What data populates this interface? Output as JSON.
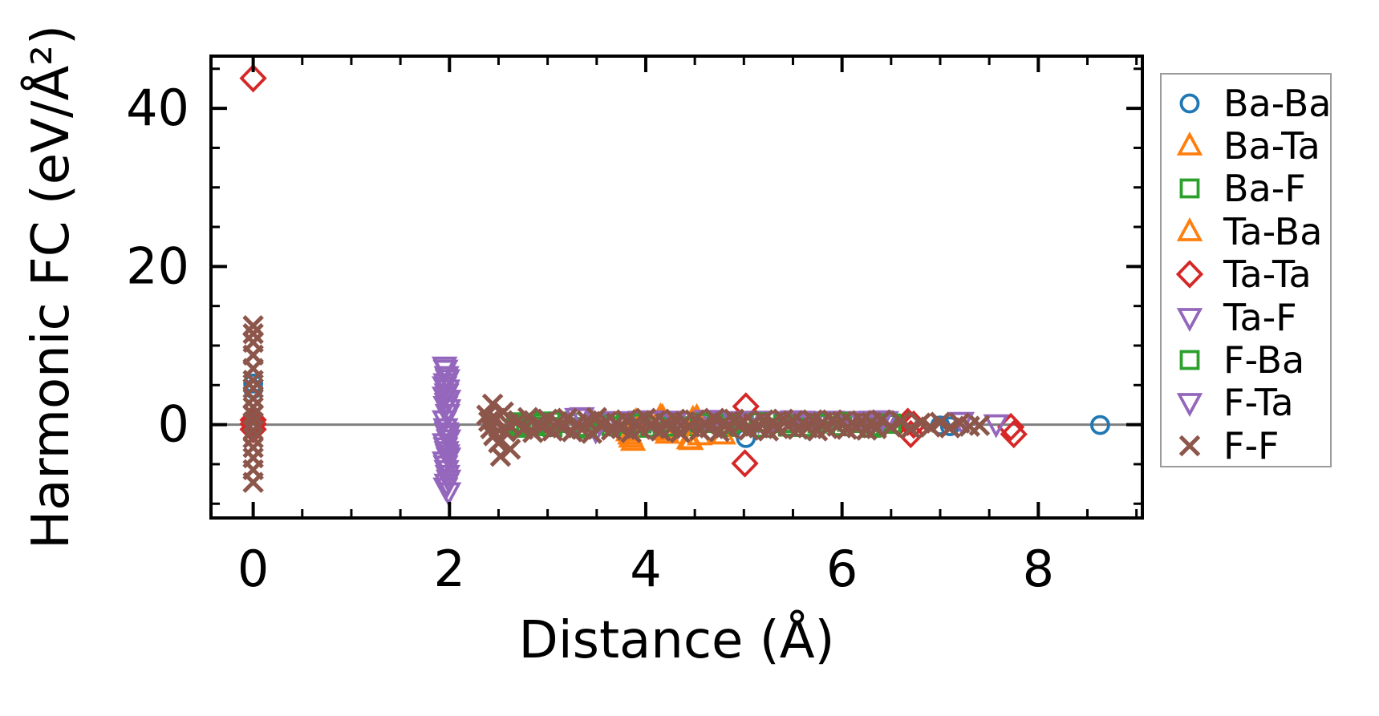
{
  "figure": {
    "xlabel": "Distance (Å)",
    "ylabel": "Harmonic FC (eV/Å²)",
    "background_color": "#ffffff",
    "spine_color": "#000000",
    "zero_line_color": "#7f7f7f",
    "legend_border_color": "#9b9b9b"
  },
  "chart_data": {
    "type": "scatter",
    "title": "",
    "xlabel": "Distance (Å)",
    "ylabel": "Harmonic FC (eV/Å²)",
    "xlim": [
      -0.43,
      9.06
    ],
    "ylim": [
      -11.8,
      46.6
    ],
    "x_major_ticks": [
      0,
      2,
      4,
      6,
      8
    ],
    "x_tick_labels": [
      "0",
      "2",
      "4",
      "6",
      "8"
    ],
    "x_minor_step": 0.5,
    "y_major_ticks": [
      0,
      20,
      40
    ],
    "y_tick_labels": [
      "0",
      "20",
      "40"
    ],
    "y_minor_step": 5,
    "grid": false,
    "tick_direction": "in",
    "ticks_all_sides": true,
    "zero_line": {
      "y": 0,
      "color": "#7f7f7f"
    },
    "legend_position": "outside-right",
    "series": [
      {
        "name": "Ba-Ba",
        "marker": "circle",
        "color": "#1f77b4",
        "points": [
          [
            0,
            5.2
          ],
          [
            0,
            4.5
          ],
          [
            0,
            0.2
          ],
          [
            5.02,
            -1.7
          ],
          [
            7.0,
            -0.1
          ],
          [
            7.1,
            -0.2
          ],
          [
            8.63,
            -0.05
          ]
        ]
      },
      {
        "name": "Ba-Ta",
        "marker": "triangle-up",
        "color": "#ff7f0e",
        "points": [
          [
            3.82,
            -0.9
          ],
          [
            3.85,
            -1.7
          ],
          [
            3.87,
            -2.1
          ],
          [
            3.9,
            0.4
          ],
          [
            4.17,
            0.9
          ],
          [
            4.2,
            -0.4
          ],
          [
            4.22,
            -1.2
          ],
          [
            4.44,
            -1.9
          ],
          [
            4.48,
            0.7
          ],
          [
            4.55,
            -1.4
          ]
        ]
      },
      {
        "name": "Ba-F",
        "marker": "square",
        "color": "#2ca02c",
        "points": [
          [
            2.68,
            0.3
          ],
          [
            2.72,
            -0.4
          ],
          [
            2.78,
            0.1
          ],
          [
            2.85,
            -0.2
          ],
          [
            2.95,
            0.4
          ],
          [
            3.05,
            -0.3
          ],
          [
            3.2,
            0.2
          ],
          [
            3.35,
            -0.5
          ],
          [
            3.5,
            0.3
          ],
          [
            3.65,
            -0.2
          ],
          [
            3.8,
            0.1
          ],
          [
            4.0,
            -0.4
          ],
          [
            4.2,
            0.3
          ],
          [
            4.4,
            -0.2
          ],
          [
            4.6,
            0.2
          ],
          [
            4.8,
            -0.3
          ],
          [
            5.0,
            0.3
          ],
          [
            5.2,
            -0.4
          ],
          [
            5.4,
            0.2
          ],
          [
            5.6,
            -0.3
          ],
          [
            5.8,
            0.3
          ],
          [
            6.0,
            -0.2
          ],
          [
            6.15,
            0.2
          ],
          [
            6.3,
            -0.4
          ],
          [
            6.45,
            0.1
          ]
        ]
      },
      {
        "name": "Ta-Ba",
        "marker": "triangle-up",
        "color": "#ff7f0e",
        "points": [
          [
            3.84,
            -1.3
          ],
          [
            3.88,
            0.2
          ],
          [
            4.15,
            1.0
          ],
          [
            4.19,
            -0.8
          ],
          [
            4.46,
            -2.0
          ],
          [
            4.52,
            0.9
          ],
          [
            4.79,
            -1.3
          ]
        ]
      },
      {
        "name": "Ta-Ta",
        "marker": "diamond",
        "color": "#d62728",
        "points": [
          [
            0,
            43.8
          ],
          [
            0,
            0.6
          ],
          [
            0,
            0.1
          ],
          [
            0,
            -0.6
          ],
          [
            5.02,
            2.3
          ],
          [
            5.01,
            -4.9
          ],
          [
            6.67,
            0.35
          ],
          [
            6.7,
            -1.2
          ],
          [
            6.73,
            0.0
          ],
          [
            7.72,
            -0.3
          ],
          [
            7.75,
            -1.2
          ]
        ]
      },
      {
        "name": "Ta-F",
        "marker": "triangle-down",
        "color": "#9467bd",
        "points": [
          [
            1.95,
            7.4
          ],
          [
            1.97,
            6.2
          ],
          [
            1.96,
            5.3
          ],
          [
            1.98,
            4.5
          ],
          [
            1.95,
            3.6
          ],
          [
            1.97,
            2.8
          ],
          [
            1.99,
            2.0
          ],
          [
            1.96,
            -0.4
          ],
          [
            1.98,
            -1.3
          ],
          [
            1.95,
            -2.3
          ],
          [
            1.97,
            -3.3
          ],
          [
            1.99,
            -4.1
          ],
          [
            1.96,
            -5.1
          ],
          [
            1.98,
            -6.3
          ],
          [
            1.97,
            -7.4
          ],
          [
            1.99,
            -8.5
          ],
          [
            3.49,
            -0.7
          ],
          [
            3.52,
            0.4
          ],
          [
            3.95,
            0.55
          ],
          [
            4.05,
            0.6
          ],
          [
            4.1,
            0.5
          ],
          [
            4.62,
            0.65
          ],
          [
            4.68,
            0.6
          ],
          [
            5.05,
            0.5
          ],
          [
            5.15,
            0.55
          ],
          [
            5.3,
            0.5
          ],
          [
            5.5,
            0.6
          ],
          [
            5.7,
            0.5
          ],
          [
            5.9,
            0.55
          ],
          [
            6.1,
            0.5
          ],
          [
            6.3,
            0.55
          ],
          [
            6.45,
            0.5
          ],
          [
            7.22,
            0.4
          ],
          [
            7.57,
            0.1
          ]
        ]
      },
      {
        "name": "F-Ba",
        "marker": "square",
        "color": "#2ca02c",
        "points": [
          [
            2.7,
            -0.1
          ],
          [
            2.9,
            0.2
          ],
          [
            3.1,
            0.4
          ],
          [
            3.4,
            -0.3
          ],
          [
            3.7,
            0.3
          ],
          [
            3.95,
            0.15
          ],
          [
            4.25,
            -0.25
          ],
          [
            4.55,
            0.25
          ],
          [
            4.85,
            0.1
          ],
          [
            5.15,
            0.3
          ],
          [
            5.45,
            -0.25
          ],
          [
            5.75,
            0.15
          ],
          [
            6.05,
            0.35
          ],
          [
            6.35,
            -0.2
          ],
          [
            6.5,
            0.15
          ]
        ]
      },
      {
        "name": "F-Ta",
        "marker": "triangle-down",
        "color": "#9467bd",
        "points": [
          [
            1.96,
            7.0
          ],
          [
            1.98,
            5.8
          ],
          [
            1.95,
            4.9
          ],
          [
            1.97,
            4.0
          ],
          [
            1.99,
            3.2
          ],
          [
            1.96,
            2.4
          ],
          [
            1.98,
            1.4
          ],
          [
            1.95,
            0.6
          ],
          [
            1.97,
            -0.9
          ],
          [
            1.99,
            -1.8
          ],
          [
            1.96,
            -2.8
          ],
          [
            1.98,
            -3.7
          ],
          [
            1.95,
            -4.6
          ],
          [
            1.97,
            -5.7
          ],
          [
            1.99,
            -6.9
          ],
          [
            1.96,
            -7.9
          ],
          [
            3.3,
            0.9
          ],
          [
            3.35,
            1.0
          ],
          [
            3.72,
            0.5
          ],
          [
            4.3,
            0.55
          ],
          [
            4.9,
            0.5
          ],
          [
            5.6,
            0.55
          ],
          [
            6.2,
            0.5
          ],
          [
            6.4,
            0.6
          ]
        ]
      },
      {
        "name": "F-F",
        "marker": "x",
        "color": "#8c564b",
        "points": [
          [
            0,
            12.5
          ],
          [
            0,
            11.5
          ],
          [
            0,
            10.4
          ],
          [
            0,
            8.8
          ],
          [
            0,
            7.1
          ],
          [
            0,
            5.6
          ],
          [
            0,
            4.6
          ],
          [
            0,
            3.3
          ],
          [
            0,
            2.2
          ],
          [
            0,
            1.2
          ],
          [
            0,
            0.3
          ],
          [
            0,
            -0.7
          ],
          [
            0,
            -1.7
          ],
          [
            0,
            -2.9
          ],
          [
            0,
            -4.2
          ],
          [
            0,
            -5.7
          ],
          [
            0,
            -7.3
          ],
          [
            2.38,
            1.2
          ],
          [
            2.4,
            0.4
          ],
          [
            2.42,
            -0.5
          ],
          [
            2.44,
            2.6
          ],
          [
            2.45,
            -1.4
          ],
          [
            2.47,
            0.8
          ],
          [
            2.5,
            -2.3
          ],
          [
            2.52,
            -4.0
          ],
          [
            2.55,
            1.6
          ],
          [
            2.57,
            -0.9
          ],
          [
            2.6,
            0.1
          ],
          [
            2.62,
            -3.1
          ],
          [
            2.7,
            0.5
          ],
          [
            2.75,
            -0.6
          ],
          [
            2.8,
            0.9
          ],
          [
            2.85,
            -1.0
          ],
          [
            2.9,
            0.2
          ],
          [
            2.95,
            -0.3
          ],
          [
            3.0,
            0.7
          ],
          [
            3.05,
            -0.8
          ],
          [
            3.1,
            0.3
          ],
          [
            3.15,
            -0.4
          ],
          [
            3.2,
            0.8
          ],
          [
            3.25,
            -0.9
          ],
          [
            3.3,
            0.1
          ],
          [
            3.35,
            -0.6
          ],
          [
            3.4,
            0.5
          ],
          [
            3.45,
            -1.1
          ],
          [
            3.5,
            0.9
          ],
          [
            3.55,
            -0.2
          ],
          [
            3.6,
            0.4
          ],
          [
            3.65,
            -0.7
          ],
          [
            3.7,
            0.2
          ],
          [
            3.75,
            -0.5
          ],
          [
            3.8,
            0.6
          ],
          [
            3.85,
            -1.0
          ],
          [
            3.9,
            0.3
          ],
          [
            3.95,
            -0.6
          ],
          [
            4.0,
            0.8
          ],
          [
            4.05,
            -0.2
          ],
          [
            4.1,
            0.5
          ],
          [
            4.15,
            -0.8
          ],
          [
            4.2,
            0.2
          ],
          [
            4.25,
            -0.5
          ],
          [
            4.3,
            0.7
          ],
          [
            4.35,
            -1.0
          ],
          [
            4.4,
            0.4
          ],
          [
            4.45,
            -0.3
          ],
          [
            4.5,
            0.6
          ],
          [
            4.55,
            -0.7
          ],
          [
            4.6,
            0.1
          ],
          [
            4.65,
            -0.4
          ],
          [
            4.7,
            0.8
          ],
          [
            4.75,
            -0.9
          ],
          [
            4.8,
            0.3
          ],
          [
            4.85,
            -0.5
          ],
          [
            4.9,
            0.7
          ],
          [
            4.95,
            -0.2
          ],
          [
            5.0,
            0.4
          ],
          [
            5.05,
            -0.7
          ],
          [
            5.1,
            0.2
          ],
          [
            5.15,
            -0.4
          ],
          [
            5.2,
            0.6
          ],
          [
            5.25,
            -0.8
          ],
          [
            5.3,
            0.3
          ],
          [
            5.35,
            -0.5
          ],
          [
            5.4,
            0.7
          ],
          [
            5.45,
            -0.2
          ],
          [
            5.5,
            0.5
          ],
          [
            5.55,
            -0.6
          ],
          [
            5.6,
            0.2
          ],
          [
            5.65,
            -0.4
          ],
          [
            5.7,
            0.6
          ],
          [
            5.75,
            -0.8
          ],
          [
            5.8,
            0.3
          ],
          [
            5.85,
            -0.5
          ],
          [
            5.9,
            0.6
          ],
          [
            5.95,
            -0.2
          ],
          [
            6.0,
            0.4
          ],
          [
            6.05,
            -0.6
          ],
          [
            6.1,
            0.2
          ],
          [
            6.15,
            -0.4
          ],
          [
            6.2,
            0.5
          ],
          [
            6.25,
            -0.7
          ],
          [
            6.3,
            0.3
          ],
          [
            6.35,
            -0.5
          ],
          [
            6.4,
            0.6
          ],
          [
            6.5,
            -0.3
          ],
          [
            6.6,
            0.4
          ],
          [
            6.7,
            -0.5
          ],
          [
            6.8,
            0.2
          ],
          [
            6.9,
            -0.3
          ],
          [
            7.0,
            0.3
          ],
          [
            7.1,
            -0.4
          ],
          [
            7.2,
            0.2
          ],
          [
            7.3,
            -0.2
          ],
          [
            7.4,
            -0.1
          ]
        ]
      }
    ]
  },
  "legend": {
    "items": [
      {
        "label": "Ba-Ba",
        "marker": "circle",
        "color": "#1f77b4"
      },
      {
        "label": "Ba-Ta",
        "marker": "triangle-up",
        "color": "#ff7f0e"
      },
      {
        "label": "Ba-F",
        "marker": "square",
        "color": "#2ca02c"
      },
      {
        "label": "Ta-Ba",
        "marker": "triangle-up",
        "color": "#ff7f0e"
      },
      {
        "label": "Ta-Ta",
        "marker": "diamond",
        "color": "#d62728"
      },
      {
        "label": "Ta-F",
        "marker": "triangle-down",
        "color": "#9467bd"
      },
      {
        "label": "F-Ba",
        "marker": "square",
        "color": "#2ca02c"
      },
      {
        "label": "F-Ta",
        "marker": "triangle-down",
        "color": "#9467bd"
      },
      {
        "label": "F-F",
        "marker": "x",
        "color": "#8c564b"
      }
    ]
  }
}
